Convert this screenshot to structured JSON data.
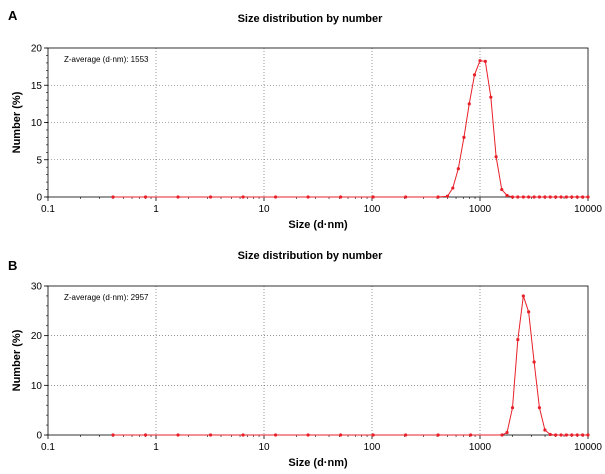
{
  "chart_data": [
    {
      "type": "line",
      "panel": "A",
      "title": "Size distribution by number",
      "xlabel": "Size (d·nm)",
      "ylabel": "Number (%)",
      "annotation": "Z-average (d·nm): 1553",
      "xscale": "log",
      "xlim": [
        0.1,
        10000
      ],
      "ylim": [
        0,
        20
      ],
      "xticks": [
        "0.1",
        "1",
        "10",
        "100",
        "1000",
        "10000"
      ],
      "yticks": [
        "0",
        "5",
        "10",
        "15",
        "20"
      ],
      "grid": true,
      "line_color": "#e8202a",
      "series": [
        {
          "x": [
            0.4,
            0.8,
            1.6,
            3.2,
            6.4,
            12.8,
            25.6,
            51.2,
            102.4,
            204.8,
            409.6,
            500,
            560,
            630,
            710,
            795,
            890,
            1000,
            1120,
            1260,
            1410,
            1590,
            1780,
            2000,
            2240,
            2520,
            2820,
            3170,
            3550,
            3990,
            4470,
            5020,
            5630,
            6310,
            7080,
            7940,
            8910,
            10000
          ],
          "y": [
            0,
            0,
            0,
            0,
            0,
            0,
            0,
            0,
            0,
            0,
            0,
            0.1,
            1.2,
            3.8,
            8.0,
            12.5,
            16.4,
            18.3,
            18.2,
            13.4,
            5.4,
            1.0,
            0.2,
            0,
            0,
            0,
            0,
            0,
            0,
            0,
            0,
            0,
            0,
            0,
            0,
            0,
            0,
            0
          ]
        }
      ]
    },
    {
      "type": "line",
      "panel": "B",
      "title": "Size distribution by number",
      "xlabel": "Size (d·nm)",
      "ylabel": "Number (%)",
      "annotation": "Z-average (d·nm): 2957",
      "xscale": "log",
      "xlim": [
        0.1,
        10000
      ],
      "ylim": [
        0,
        30
      ],
      "xticks": [
        "0.1",
        "1",
        "10",
        "100",
        "1000",
        "10000"
      ],
      "yticks": [
        "0",
        "10",
        "20",
        "30"
      ],
      "grid": true,
      "line_color": "#e8202a",
      "series": [
        {
          "x": [
            0.4,
            0.8,
            1.6,
            3.2,
            6.4,
            12.8,
            25.6,
            51.2,
            102.4,
            204.8,
            409.6,
            819.2,
            1600,
            1780,
            2000,
            2240,
            2520,
            2820,
            3170,
            3550,
            3990,
            4470,
            5020,
            5630,
            6310,
            7080,
            7940,
            8910,
            10000
          ],
          "y": [
            0,
            0,
            0,
            0,
            0,
            0,
            0,
            0,
            0,
            0,
            0,
            0,
            0,
            0.5,
            5.5,
            19.2,
            28.0,
            24.8,
            14.7,
            5.5,
            1.0,
            0.1,
            0,
            0,
            0,
            0,
            0,
            0,
            0
          ]
        }
      ]
    }
  ]
}
